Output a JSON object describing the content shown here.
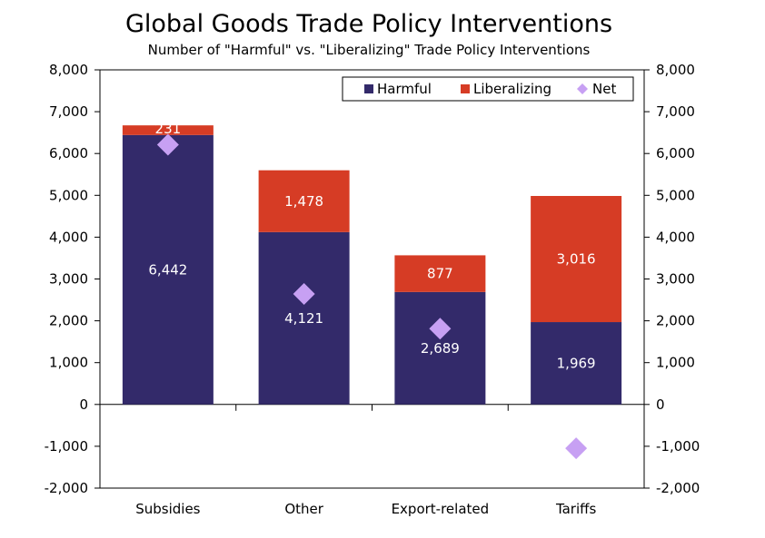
{
  "title": "Global Goods Trade Policy Interventions",
  "subtitle": "Number of \"Harmful\" vs. \"Liberalizing\" Trade Policy Interventions",
  "colors": {
    "harmful": "#332a6a",
    "liberalizing": "#d63c25",
    "net": "#c7a0f3",
    "axis": "#000000"
  },
  "chart_data": {
    "type": "bar",
    "stacked": true,
    "categories": [
      "Subsidies",
      "Other",
      "Export-related",
      "Tariffs"
    ],
    "series": [
      {
        "name": "Harmful",
        "type": "bar",
        "values": [
          6442,
          4121,
          2689,
          1969
        ],
        "labels": [
          "6,442",
          "4,121",
          "2,689",
          "1,969"
        ]
      },
      {
        "name": "Liberalizing",
        "type": "bar",
        "values": [
          231,
          1478,
          877,
          3016
        ],
        "labels": [
          "231",
          "1,478",
          "877",
          "3,016"
        ]
      },
      {
        "name": "Net",
        "type": "scatter",
        "marker": "diamond",
        "values": [
          6211,
          2643,
          1812,
          -1047
        ]
      }
    ],
    "ylim": [
      -2000,
      8000
    ],
    "yticks": [
      -2000,
      -1000,
      0,
      1000,
      2000,
      3000,
      4000,
      5000,
      6000,
      7000,
      8000
    ],
    "ytick_labels": [
      "-2,000",
      "-1,000",
      "0",
      "1,000",
      "2,000",
      "3,000",
      "4,000",
      "5,000",
      "6,000",
      "7,000",
      "8,000"
    ],
    "secondary_y_axis": true,
    "grid": false,
    "legend_position": "top-right"
  }
}
